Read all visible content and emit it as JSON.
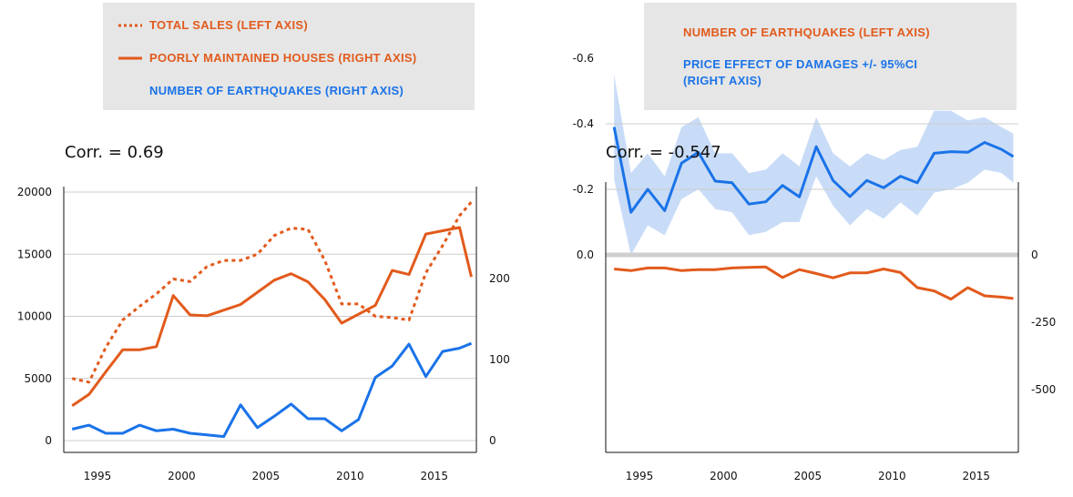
{
  "colors": {
    "orange": "#e25a1c",
    "blue": "#1a73e8",
    "band": "#c9dcf7",
    "grid": "#cccccc"
  },
  "left_legend": {
    "total_sales": "TOTAL SALES (LEFT AXIS)",
    "poorly_maintained": "POORLY MAINTAINED HOUSES (RIGHT AXIS)",
    "earthquakes": "NUMBER OF EARTHQUAKES (RIGHT AXIS)"
  },
  "right_legend": {
    "earthquakes": "NUMBER OF EARTHQUAKES (LEFT AXIS)",
    "price_effect_line1": "PRICE EFFECT OF DAMAGES +/- 95%CI",
    "price_effect_line2": "(RIGHT AXIS)"
  },
  "left_corr": "Corr. = 0.69",
  "right_corr": "Corr. = -0.547",
  "chart_data": [
    {
      "type": "line",
      "ylim": [
        0,
        20000
      ],
      "yticks": [
        "20000",
        "15000",
        "10000",
        "5000",
        "0"
      ],
      "y2lim": [
        0,
        300
      ],
      "y2ticks": [
        "200",
        "100",
        "0"
      ],
      "xlim": [
        1993,
        2017.5
      ],
      "xticks": [
        "1995",
        "2000",
        "2005",
        "2010",
        "2015"
      ],
      "grid": true,
      "series": [
        {
          "name": "TOTAL SALES (LEFT AXIS)",
          "axis": "left",
          "style": "dotted",
          "x": [
            1993.5,
            1994.5,
            1995.5,
            1996.5,
            1997.5,
            1998.5,
            1999.5,
            2000.5,
            2001.5,
            2002.5,
            2003.5,
            2004.5,
            2005.5,
            2006.5,
            2007.5,
            2008.5,
            2009.5,
            2010.5,
            2011.5,
            2012.5,
            2013.5,
            2014.5,
            2015.5,
            2016.5,
            2017.2
          ],
          "values": [
            5000,
            4700,
            7500,
            9700,
            10800,
            11800,
            13000,
            12800,
            14000,
            14500,
            14500,
            15000,
            16500,
            17100,
            17000,
            14500,
            11000,
            11000,
            10000,
            9900,
            9700,
            13500,
            15700,
            18100,
            19200
          ]
        },
        {
          "name": "POORLY MAINTAINED HOUSES (RIGHT AXIS)",
          "axis": "right",
          "style": "solid",
          "x": [
            1993.5,
            1994.5,
            1995.5,
            1996.5,
            1997.5,
            1998.5,
            1999.5,
            2000.5,
            2001.5,
            2002.5,
            2003.5,
            2004.5,
            2005.5,
            2006.5,
            2007.5,
            2008.5,
            2009.5,
            2010.5,
            2011.5,
            2012.5,
            2013.5,
            2014.5,
            2015.5,
            2016.5,
            2017.2
          ],
          "values": [
            43,
            57,
            85,
            112,
            112,
            116,
            179,
            155,
            154,
            161,
            168,
            183,
            198,
            206,
            196,
            174,
            145,
            156,
            167,
            210,
            205,
            255,
            259,
            263,
            202
          ]
        },
        {
          "name": "NUMBER OF EARTHQUAKES (RIGHT AXIS)",
          "axis": "right",
          "style": "solid",
          "x": [
            1993.5,
            1994.5,
            1995.5,
            1996.5,
            1997.5,
            1998.5,
            1999.5,
            2000.5,
            2001.5,
            2002.5,
            2003.5,
            2004.5,
            2005.5,
            2006.5,
            2007.5,
            2008.5,
            2009.5,
            2010.5,
            2011.5,
            2012.5,
            2013.5,
            2014.5,
            2015.5,
            2016.5,
            2017.2
          ],
          "values": [
            14,
            19,
            9,
            9,
            19,
            12,
            14,
            9,
            7,
            5,
            44,
            16,
            30,
            45,
            27,
            27,
            12,
            26,
            78,
            92,
            119,
            79,
            110,
            114,
            120
          ]
        }
      ]
    },
    {
      "type": "line",
      "ylim": [
        -0.6,
        0.2
      ],
      "yticks": [
        "0.0",
        "-0.2",
        "-0.4",
        "-0.6"
      ],
      "y2ticks": [
        "0",
        "-250",
        "-500"
      ],
      "xlim": [
        1993,
        2017.5
      ],
      "xticks": [
        "1995",
        "2000",
        "2005",
        "2010",
        "2015"
      ],
      "grid": true,
      "series": [
        {
          "name": "NUMBER OF EARTHQUAKES (LEFT AXIS)",
          "axis": "left",
          "style": "solid",
          "x": [
            1993.5,
            1994.5,
            1995.5,
            1996.5,
            1997.5,
            1998.5,
            1999.5,
            2000.5,
            2001.5,
            2002.5,
            2003.5,
            2004.5,
            2005.5,
            2006.5,
            2007.5,
            2008.5,
            2009.5,
            2010.5,
            2011.5,
            2012.5,
            2013.5,
            2014.5,
            2015.5,
            2016.5,
            2017.2
          ],
          "values": [
            0.043,
            0.048,
            0.04,
            0.04,
            0.048,
            0.045,
            0.045,
            0.04,
            0.038,
            0.037,
            0.069,
            0.045,
            0.057,
            0.07,
            0.055,
            0.055,
            0.043,
            0.054,
            0.1,
            0.11,
            0.135,
            0.1,
            0.125,
            0.129,
            0.133
          ]
        },
        {
          "name": "PRICE EFFECT OF DAMAGES +/- 95%CI (RIGHT AXIS)",
          "axis": "left",
          "style": "solid",
          "x": [
            1993.5,
            1994.5,
            1995.5,
            1996.5,
            1997.5,
            1998.5,
            1999.5,
            2000.5,
            2001.5,
            2002.5,
            2003.5,
            2004.5,
            2005.5,
            2006.5,
            2007.5,
            2008.5,
            2009.5,
            2010.5,
            2011.5,
            2012.5,
            2013.5,
            2014.5,
            2015.5,
            2016.5,
            2017.2
          ],
          "values": [
            -0.39,
            -0.13,
            -0.2,
            -0.135,
            -0.28,
            -0.313,
            -0.225,
            -0.22,
            -0.155,
            -0.162,
            -0.212,
            -0.177,
            -0.33,
            -0.227,
            -0.178,
            -0.227,
            -0.205,
            -0.24,
            -0.22,
            -0.31,
            -0.315,
            -0.313,
            -0.343,
            -0.322,
            -0.3
          ],
          "lower": [
            -0.55,
            -0.25,
            -0.31,
            -0.24,
            -0.39,
            -0.42,
            -0.31,
            -0.31,
            -0.25,
            -0.26,
            -0.31,
            -0.27,
            -0.42,
            -0.31,
            -0.27,
            -0.31,
            -0.29,
            -0.32,
            -0.33,
            -0.44,
            -0.44,
            -0.41,
            -0.42,
            -0.39,
            -0.37
          ],
          "upper": [
            -0.23,
            0.0,
            -0.09,
            -0.06,
            -0.17,
            -0.2,
            -0.14,
            -0.13,
            -0.06,
            -0.07,
            -0.1,
            -0.1,
            -0.24,
            -0.15,
            -0.09,
            -0.14,
            -0.11,
            -0.16,
            -0.12,
            -0.19,
            -0.2,
            -0.22,
            -0.26,
            -0.25,
            -0.22
          ]
        }
      ]
    }
  ]
}
